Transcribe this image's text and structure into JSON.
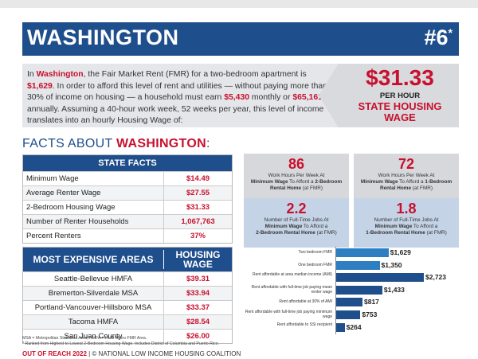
{
  "header": {
    "state": "WASHINGTON",
    "rank": "#6",
    "rank_mark": "*"
  },
  "intro": {
    "p1": "In ",
    "state": "Washington",
    "p2": ", the Fair Market Rent (FMR) for a two-bedroom apartment is ",
    "fmr": "$1,629",
    "p3": ". In order to afford this level of rent and utilities — without paying more than 30% of income on housing — a household must earn ",
    "monthly": "$5,430",
    "p4": " monthly or ",
    "annual": "$65,161",
    "p5": " annually. Assuming a 40-hour work week, 52 weeks per year, this level of income translates into an hourly Housing Wage of:"
  },
  "wage": {
    "amount": "$31.33",
    "per": "PER HOUR",
    "label": "STATE HOUSING WAGE"
  },
  "facts_title": {
    "prefix": "FACTS ABOUT ",
    "state": "WASHINGTON",
    "suffix": ":"
  },
  "state_facts": {
    "header": "STATE FACTS",
    "rows": [
      {
        "label": "Minimum Wage",
        "value": "$14.49"
      },
      {
        "label": "Average Renter Wage",
        "value": "$27.55"
      },
      {
        "label": "2-Bedroom Housing Wage",
        "value": "$31.33"
      },
      {
        "label": "Number of Renter Households",
        "value": "1,067,763"
      },
      {
        "label": "Percent Renters",
        "value": "37%"
      }
    ]
  },
  "expensive": {
    "header_left": "MOST EXPENSIVE AREAS",
    "header_right": "HOUSING WAGE",
    "rows": [
      {
        "label": "Seattle-Bellevue HMFA",
        "value": "$39.31"
      },
      {
        "label": "Bremerton-Silverdale MSA",
        "value": "$33.94"
      },
      {
        "label": "Portland-Vancouver-Hillsboro MSA",
        "value": "$33.37"
      },
      {
        "label": "Tacoma HMFA",
        "value": "$28.54"
      },
      {
        "label": "San Juan County",
        "value": "$26.00"
      }
    ]
  },
  "footnote": {
    "line1": "MSA = Metropolitan Statistical Area; HMFA = HUD Metro FMR Area.",
    "line2": "* Ranked from Highest to Lowest 2-Bedroom Housing Wage. Includes District of Columbia and Puerto Rico."
  },
  "footer": {
    "brand": "OUT OF REACH 2022",
    "rest": " | © NATIONAL LOW INCOME HOUSING COALITION"
  },
  "cards": [
    {
      "num": "86",
      "l1": "Work Hours Per Week At",
      "l2b": "Minimum Wage",
      "l2": " To Afford a ",
      "l2c": "2-Bedroom",
      "l3b": "Rental Home",
      "l3": " (at FMR)"
    },
    {
      "num": "72",
      "l1": "Work Hours Per Week At",
      "l2b": "Minimum Wage",
      "l2": " To Afford a ",
      "l2c": "1-Bedroom",
      "l3b": "Rental Home",
      "l3": " (at FMR)"
    },
    {
      "num": "2.2",
      "l1": "Number of Full-Time Jobs At",
      "l2b": "Minimum Wage",
      "l2": " To Afford a",
      "l2c": "",
      "l3b": "2-Bedroom Rental Home",
      "l3": " (at FMR)"
    },
    {
      "num": "1.8",
      "l1": "Number of Full-Time Jobs At",
      "l2b": "Minimum Wage",
      "l2": " To Afford a",
      "l2c": "",
      "l3b": "1-Bedroom Rental Home",
      "l3": " (at FMR)"
    }
  ],
  "chart_data": {
    "type": "bar",
    "orientation": "horizontal",
    "categories": [
      "Two bedroom FMR",
      "One bedroom FMR",
      "Rent affordable at area median income (AMI)",
      "Rent affordable with full-time job paying mean renter wage",
      "Rent affordable at 30% of AMI",
      "Rent affordable with full-time job paying minimum wage",
      "Rent affordable to SSI recipient"
    ],
    "values": [
      1629,
      1350,
      2723,
      1433,
      817,
      753,
      264
    ],
    "value_labels": [
      "$1,629",
      "$1,350",
      "$2,723",
      "$1,433",
      "$817",
      "$753",
      "$264"
    ],
    "colors": [
      "#2e7fc1",
      "#2e7fc1",
      "#1f4e8c",
      "#1f4e8c",
      "#1f4e8c",
      "#1f4e8c",
      "#1f4e8c"
    ],
    "xlim": [
      0,
      2723
    ]
  }
}
